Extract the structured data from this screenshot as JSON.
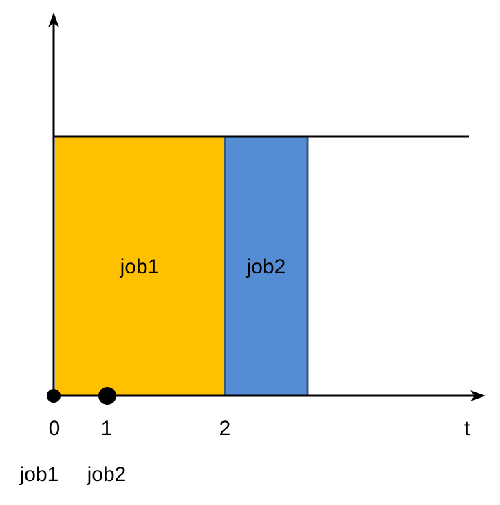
{
  "diagram": {
    "axis": {
      "time_label": "t",
      "tick_labels": [
        "0",
        "1",
        "2"
      ]
    },
    "blocks": [
      {
        "label": "job1",
        "start": 0,
        "end": 2,
        "color": "#FFC000"
      },
      {
        "label": "job2",
        "start": 2,
        "end": 3,
        "color": "#548DD4"
      }
    ],
    "arrivals": [
      {
        "label": "job1",
        "time": 0
      },
      {
        "label": "job2",
        "time": 1
      }
    ],
    "colors": {
      "axis": "#000000",
      "block_border": "#3B5878"
    }
  }
}
